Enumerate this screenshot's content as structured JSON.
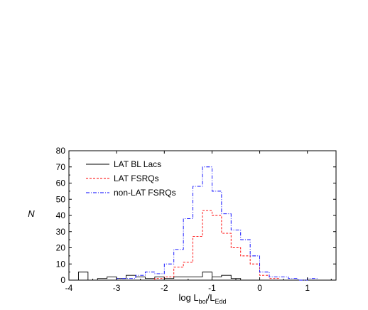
{
  "chart_data": {
    "type": "histogram",
    "xlabel": {
      "main": "log L",
      "sub1": "bol",
      "sep": "/L",
      "sub2": "Edd"
    },
    "ylabel": "N",
    "xlim": [
      -4,
      1.6
    ],
    "ylim": [
      0,
      80
    ],
    "xticks": [
      -4,
      -3,
      -2,
      -1,
      0,
      1
    ],
    "xtick_labels": [
      "-4",
      "-3",
      "-2",
      "-1",
      "0",
      "1"
    ],
    "yticks": [
      0,
      10,
      20,
      30,
      40,
      50,
      60,
      70,
      80
    ],
    "ytick_labels": [
      "0",
      "10",
      "20",
      "30",
      "40",
      "50",
      "60",
      "70",
      "80"
    ],
    "legend_position": "top-left",
    "bin_width": 0.2,
    "series": [
      {
        "name": "LAT BL Lacs",
        "color": "#000000",
        "dash": "solid",
        "bins": [
          [
            -3.7,
            5
          ],
          [
            -3.5,
            0
          ],
          [
            -3.3,
            1
          ],
          [
            -3.1,
            2
          ],
          [
            -2.9,
            1
          ],
          [
            -2.7,
            3
          ],
          [
            -2.5,
            2
          ],
          [
            -2.3,
            1
          ],
          [
            -2.1,
            2
          ],
          [
            -1.9,
            1
          ],
          [
            -1.7,
            2
          ],
          [
            -1.5,
            2
          ],
          [
            -1.3,
            2
          ],
          [
            -1.1,
            5
          ],
          [
            -0.9,
            2
          ],
          [
            -0.7,
            3
          ],
          [
            -0.5,
            1
          ],
          [
            -0.3,
            0
          ]
        ]
      },
      {
        "name": "LAT FSRQs",
        "color": "#ff0000",
        "dash": "dashed",
        "bins": [
          [
            -2.1,
            1
          ],
          [
            -1.9,
            2
          ],
          [
            -1.7,
            8
          ],
          [
            -1.5,
            11
          ],
          [
            -1.3,
            27
          ],
          [
            -1.1,
            43
          ],
          [
            -0.9,
            40
          ],
          [
            -0.7,
            29
          ],
          [
            -0.5,
            20
          ],
          [
            -0.3,
            15
          ],
          [
            -0.1,
            10
          ],
          [
            0.1,
            3
          ],
          [
            0.3,
            1
          ]
        ]
      },
      {
        "name": "non-LAT FSRQs",
        "color": "#0000ff",
        "dash": "dashdot",
        "bins": [
          [
            -2.9,
            1
          ],
          [
            -2.7,
            1
          ],
          [
            -2.5,
            3
          ],
          [
            -2.3,
            5
          ],
          [
            -2.1,
            4
          ],
          [
            -1.9,
            10
          ],
          [
            -1.7,
            19
          ],
          [
            -1.5,
            38
          ],
          [
            -1.3,
            58
          ],
          [
            -1.1,
            70
          ],
          [
            -0.9,
            55
          ],
          [
            -0.7,
            41
          ],
          [
            -0.5,
            31
          ],
          [
            -0.3,
            25
          ],
          [
            -0.1,
            15
          ],
          [
            0.1,
            5
          ],
          [
            0.3,
            2
          ],
          [
            0.5,
            2
          ],
          [
            0.7,
            1
          ],
          [
            0.9,
            0
          ],
          [
            1.1,
            1
          ]
        ]
      }
    ]
  }
}
